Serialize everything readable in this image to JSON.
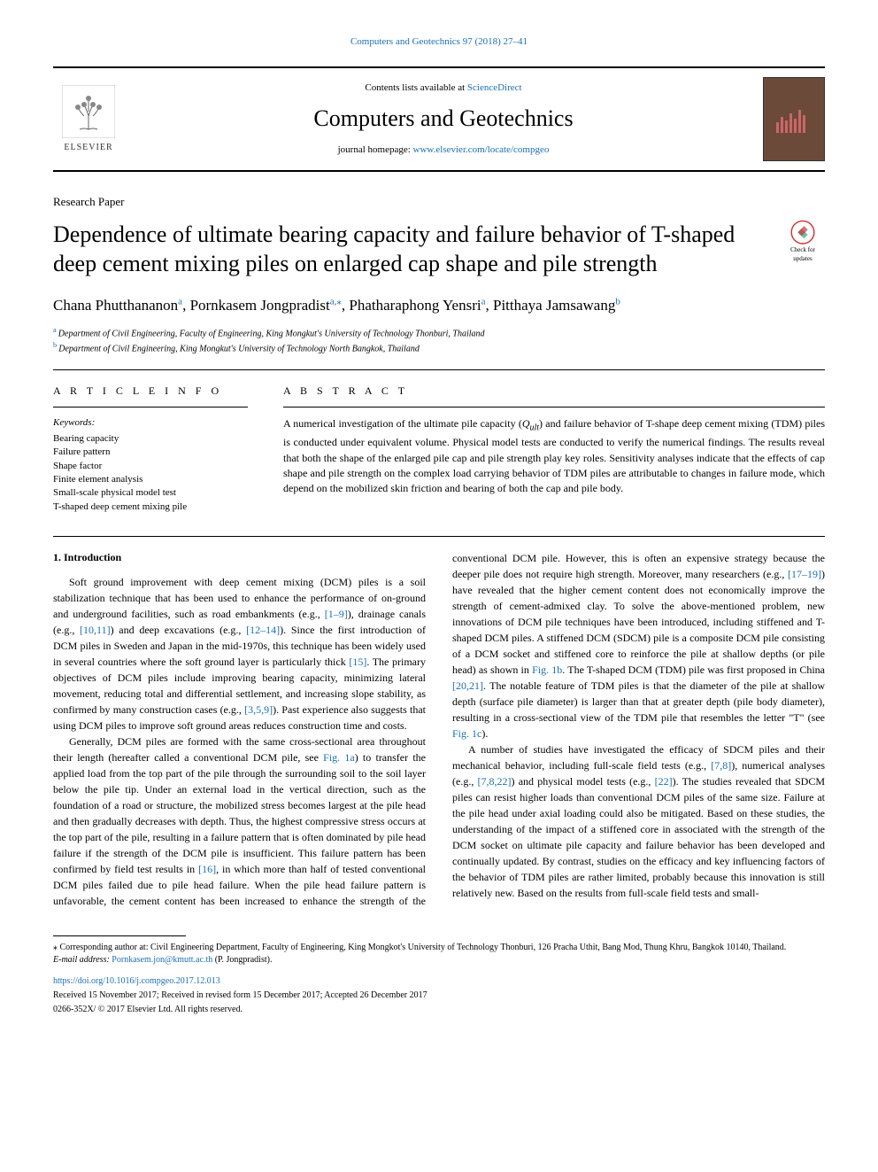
{
  "header": {
    "top_link": "Computers and Geotechnics 97 (2018) 27–41",
    "contents_prefix": "Contents lists available at ",
    "contents_link": "ScienceDirect",
    "journal_name": "Computers and Geotechnics",
    "homepage_prefix": "journal homepage: ",
    "homepage_url": "www.elsevier.com/locate/compgeo",
    "publisher_name": "ELSEVIER",
    "check_updates_text": "Check for updates"
  },
  "article": {
    "type": "Research Paper",
    "title": "Dependence of ultimate bearing capacity and failure behavior of T-shaped deep cement mixing piles on enlarged cap shape and pile strength",
    "authors": [
      {
        "name": "Chana Phutthananon",
        "affil": "a"
      },
      {
        "name": "Pornkasem Jongpradist",
        "affil": "a,⁎"
      },
      {
        "name": "Phatharaphong Yensri",
        "affil": "a"
      },
      {
        "name": "Pitthaya Jamsawang",
        "affil": "b"
      }
    ],
    "affiliations": [
      {
        "label": "a",
        "text": "Department of Civil Engineering, Faculty of Engineering, King Mongkut's University of Technology Thonburi, Thailand"
      },
      {
        "label": "b",
        "text": "Department of Civil Engineering, King Mongkut's University of Technology North Bangkok, Thailand"
      }
    ]
  },
  "info": {
    "heading": "A R T I C L E  I N F O",
    "keywords_label": "Keywords:",
    "keywords": [
      "Bearing capacity",
      "Failure pattern",
      "Shape factor",
      "Finite element analysis",
      "Small-scale physical model test",
      "T-shaped deep cement mixing pile"
    ]
  },
  "abstract": {
    "heading": "A B S T R A C T",
    "text": "A numerical investigation of the ultimate pile capacity (Qult) and failure behavior of T-shape deep cement mixing (TDM) piles is conducted under equivalent volume. Physical model tests are conducted to verify the numerical findings. The results reveal that both the shape of the enlarged pile cap and pile strength play key roles. Sensitivity analyses indicate that the effects of cap shape and pile strength on the complex load carrying behavior of TDM piles are attributable to changes in failure mode, which depend on the mobilized skin friction and bearing of both the cap and pile body."
  },
  "body": {
    "section_title": "1. Introduction",
    "paragraphs": [
      "Soft ground improvement with deep cement mixing (DCM) piles is a soil stabilization technique that has been used to enhance the performance of on-ground and underground facilities, such as road embankments (e.g., [1–9]), drainage canals (e.g., [10,11]) and deep excavations (e.g., [12–14]). Since the first introduction of DCM piles in Sweden and Japan in the mid-1970s, this technique has been widely used in several countries where the soft ground layer is particularly thick [15]. The primary objectives of DCM piles include improving bearing capacity, minimizing lateral movement, reducing total and differential settlement, and increasing slope stability, as confirmed by many construction cases (e.g., [3,5,9]). Past experience also suggests that using DCM piles to improve soft ground areas reduces construction time and costs.",
      "Generally, DCM piles are formed with the same cross-sectional area throughout their length (hereafter called a conventional DCM pile, see Fig. 1a) to transfer the applied load from the top part of the pile through the surrounding soil to the soil layer below the pile tip. Under an external load in the vertical direction, such as the foundation of a road or structure, the mobilized stress becomes largest at the pile head and then gradually decreases with depth. Thus, the highest compressive stress occurs at the top part of the pile, resulting in a failure pattern that is often dominated by pile head failure if the strength of the DCM pile is insufficient. This failure pattern has been confirmed by field test results in [16], in which more than half of tested conventional DCM piles failed due to pile head failure. When the pile head failure pattern is unfavorable, the cement content has been increased to enhance the strength of the conventional DCM pile. However, this is often an expensive strategy because the deeper pile does not require high strength. Moreover, many researchers (e.g., [17–19]) have revealed that the higher cement content does not economically improve the strength of cement-admixed clay. To solve the above-mentioned problem, new innovations of DCM pile techniques have been introduced, including stiffened and T-shaped DCM piles. A stiffened DCM (SDCM) pile is a composite DCM pile consisting of a DCM socket and stiffened core to reinforce the pile at shallow depths (or pile head) as shown in Fig. 1b. The T-shaped DCM (TDM) pile was first proposed in China [20,21]. The notable feature of TDM piles is that the diameter of the pile at shallow depth (surface pile diameter) is larger than that at greater depth (pile body diameter), resulting in a cross-sectional view of the TDM pile that resembles the letter \"T\" (see Fig. 1c).",
      "A number of studies have investigated the efficacy of SDCM piles and their mechanical behavior, including full-scale field tests (e.g., [7,8]), numerical analyses (e.g., [7,8,22]) and physical model tests (e.g., [22]). The studies revealed that SDCM piles can resist higher loads than conventional DCM piles of the same size. Failure at the pile head under axial loading could also be mitigated. Based on these studies, the understanding of the impact of a stiffened core in associated with the strength of the DCM socket on ultimate pile capacity and failure behavior has been developed and continually updated. By contrast, studies on the efficacy and key influencing factors of the behavior of TDM piles are rather limited, probably because this innovation is still relatively new. Based on the results from full-scale field tests and small-"
    ]
  },
  "footer": {
    "corresponding_marker": "⁎",
    "corresponding_text": "Corresponding author at: Civil Engineering Department, Faculty of Engineering, King Mongkot's University of Technology Thonburi, 126 Pracha Uthit, Bang Mod, Thung Khru, Bangkok 10140, Thailand.",
    "email_label": "E-mail address: ",
    "email": "Pornkasem.jon@kmutt.ac.th",
    "email_author": " (P. Jongpradist).",
    "doi": "https://doi.org/10.1016/j.compgeo.2017.12.013",
    "received": "Received 15 November 2017; Received in revised form 15 December 2017; Accepted 26 December 2017",
    "copyright": "0266-352X/ © 2017 Elsevier Ltd. All rights reserved."
  },
  "colors": {
    "link": "#1a6fb5",
    "cover_bg": "#6b4a3a",
    "cover_bar": "#c66"
  }
}
